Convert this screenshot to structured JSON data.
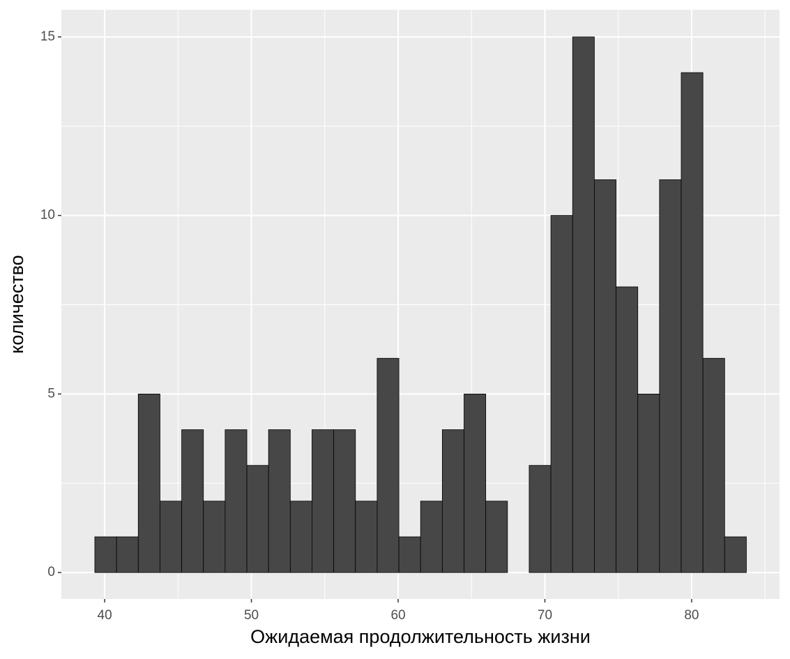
{
  "chart_data": {
    "type": "histogram",
    "x_label": "Ожидаемая продолжительность жизни",
    "y_label": "количество",
    "bins": [
      39.33,
      40.81,
      42.29,
      43.77,
      45.25,
      46.73,
      48.21,
      49.69,
      51.17,
      52.65,
      54.13,
      55.61,
      57.09,
      58.57,
      60.05,
      61.53,
      63.01,
      64.49,
      65.97,
      67.45,
      68.93,
      70.41,
      71.89,
      73.37,
      74.85,
      76.33,
      77.81,
      79.29,
      80.77,
      82.25,
      83.73
    ],
    "values": [
      1,
      1,
      5,
      2,
      4,
      2,
      4,
      3,
      4,
      2,
      4,
      4,
      2,
      6,
      1,
      2,
      4,
      5,
      2,
      0,
      3,
      10,
      15,
      11,
      8,
      5,
      11,
      14,
      6,
      1
    ],
    "color": "#474747",
    "edge_color": "#000000",
    "xlim": [
      37.05,
      85.99
    ],
    "ylim": [
      -0.74,
      15.76
    ],
    "xticks": [
      40,
      50,
      60,
      70,
      80
    ],
    "yticks": [
      0,
      5,
      10,
      15
    ],
    "grid": true,
    "minor_grid": true
  }
}
